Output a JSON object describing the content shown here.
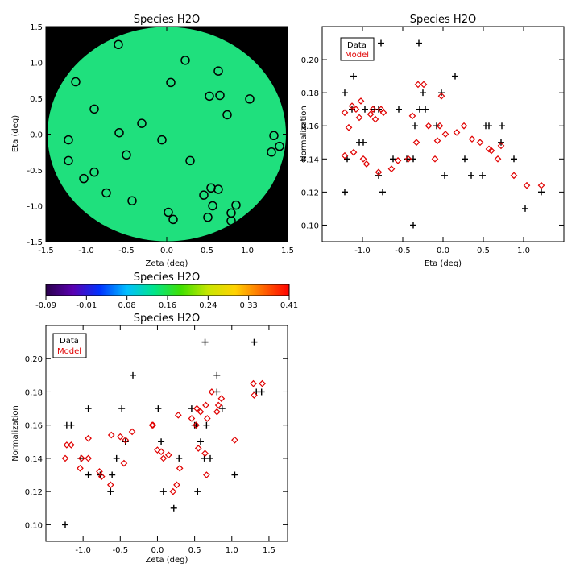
{
  "colors": {
    "background": "#ffffff",
    "map_background": "#000000",
    "map_fill": "#1fe07d",
    "data_marker": "#000000",
    "model_marker": "#e00000",
    "colorbar_stops": [
      "#2a004c",
      "#5a00b0",
      "#0033ff",
      "#00bfff",
      "#00e58a",
      "#3fe000",
      "#c8e600",
      "#ffd200",
      "#ff6a00",
      "#ff0000"
    ]
  },
  "chart_data": [
    {
      "type": "scatter",
      "title": "Species H2O",
      "xlabel": "Zeta (deg)",
      "ylabel": "Eta (deg)",
      "xlim": [
        -1.5,
        1.5
      ],
      "ylim": [
        -1.5,
        1.5
      ],
      "xticks": [
        "-1.5",
        "-1.0",
        "-0.5",
        "0.0",
        "0.5",
        "1.0",
        "1.5"
      ],
      "yticks": [
        "-1.5",
        "-1.0",
        "-0.5",
        "0.0",
        "0.5",
        "1.0",
        "1.5"
      ],
      "background": "color map of normalization, circular field",
      "marker": "open circle",
      "points": [
        {
          "zeta": -0.6,
          "eta": 1.25
        },
        {
          "zeta": 0.23,
          "eta": 1.03
        },
        {
          "zeta": 0.64,
          "eta": 0.88
        },
        {
          "zeta": -1.13,
          "eta": 0.73
        },
        {
          "zeta": 0.05,
          "eta": 0.72
        },
        {
          "zeta": 0.53,
          "eta": 0.53
        },
        {
          "zeta": 0.66,
          "eta": 0.54
        },
        {
          "zeta": 1.03,
          "eta": 0.49
        },
        {
          "zeta": -0.9,
          "eta": 0.35
        },
        {
          "zeta": 0.75,
          "eta": 0.27
        },
        {
          "zeta": -0.31,
          "eta": 0.15
        },
        {
          "zeta": -0.59,
          "eta": 0.02
        },
        {
          "zeta": 1.33,
          "eta": -0.02
        },
        {
          "zeta": -1.22,
          "eta": -0.08
        },
        {
          "zeta": -0.06,
          "eta": -0.08
        },
        {
          "zeta": 1.4,
          "eta": -0.17
        },
        {
          "zeta": 1.3,
          "eta": -0.25
        },
        {
          "zeta": -1.22,
          "eta": -0.37
        },
        {
          "zeta": -0.5,
          "eta": -0.29
        },
        {
          "zeta": 0.29,
          "eta": -0.37
        },
        {
          "zeta": -0.9,
          "eta": -0.53
        },
        {
          "zeta": -1.03,
          "eta": -0.62
        },
        {
          "zeta": 0.55,
          "eta": -0.75
        },
        {
          "zeta": 0.64,
          "eta": -0.77
        },
        {
          "zeta": -0.75,
          "eta": -0.82
        },
        {
          "zeta": 0.46,
          "eta": -0.85
        },
        {
          "zeta": -0.43,
          "eta": -0.93
        },
        {
          "zeta": 0.57,
          "eta": -1.0
        },
        {
          "zeta": 0.86,
          "eta": -0.99
        },
        {
          "zeta": 0.8,
          "eta": -1.1
        },
        {
          "zeta": 0.02,
          "eta": -1.09
        },
        {
          "zeta": 0.08,
          "eta": -1.19
        },
        {
          "zeta": 0.51,
          "eta": -1.16
        },
        {
          "zeta": 0.8,
          "eta": -1.21
        }
      ]
    },
    {
      "type": "scatter",
      "title": "Species H2O",
      "xlabel": "Eta (deg)",
      "ylabel": "Normalization",
      "xlim": [
        -1.5,
        1.5
      ],
      "ylim": [
        0.09,
        0.22
      ],
      "xticks": [
        -1.0,
        -0.5,
        0.0,
        0.5,
        1.0
      ],
      "xtick_labels": [
        "-1.0",
        "-0.5",
        "0.0",
        "0.5",
        "1.0"
      ],
      "yticks": [
        0.1,
        0.12,
        0.14,
        0.16,
        0.18,
        0.2
      ],
      "ytick_labels": [
        "0.10",
        "0.12",
        "0.14",
        "0.16",
        "0.18",
        "0.20"
      ],
      "legend": {
        "entries": [
          "Data",
          "Model"
        ],
        "position": "top-left"
      },
      "series": [
        {
          "name": "Data",
          "marker": "plus",
          "color": "#000000",
          "points": [
            [
              -1.22,
              0.18
            ],
            [
              -1.22,
              0.12
            ],
            [
              -1.19,
              0.14
            ],
            [
              -1.11,
              0.19
            ],
            [
              -1.13,
              0.17
            ],
            [
              -1.04,
              0.15
            ],
            [
              -0.99,
              0.15
            ],
            [
              -0.97,
              0.17
            ],
            [
              -0.85,
              0.17
            ],
            [
              -0.8,
              0.17
            ],
            [
              -0.8,
              0.13
            ],
            [
              -0.77,
              0.21
            ],
            [
              -0.75,
              0.12
            ],
            [
              -0.62,
              0.14
            ],
            [
              -0.55,
              0.17
            ],
            [
              -0.45,
              0.14
            ],
            [
              -0.37,
              0.14
            ],
            [
              -0.37,
              0.1
            ],
            [
              -0.35,
              0.16
            ],
            [
              -0.3,
              0.21
            ],
            [
              -0.29,
              0.17
            ],
            [
              -0.25,
              0.18
            ],
            [
              -0.22,
              0.17
            ],
            [
              -0.08,
              0.16
            ],
            [
              -0.02,
              0.18
            ],
            [
              0.02,
              0.13
            ],
            [
              0.15,
              0.19
            ],
            [
              0.27,
              0.14
            ],
            [
              0.35,
              0.13
            ],
            [
              0.49,
              0.13
            ],
            [
              0.53,
              0.16
            ],
            [
              0.57,
              0.16
            ],
            [
              0.73,
              0.16
            ],
            [
              0.72,
              0.15
            ],
            [
              0.88,
              0.14
            ],
            [
              1.02,
              0.11
            ],
            [
              1.22,
              0.12
            ]
          ]
        },
        {
          "name": "Model",
          "marker": "diamond",
          "color": "#e00000",
          "points": [
            [
              -1.22,
              0.168
            ],
            [
              -1.22,
              0.142
            ],
            [
              -1.17,
              0.159
            ],
            [
              -1.13,
              0.172
            ],
            [
              -1.11,
              0.144
            ],
            [
              -1.08,
              0.17
            ],
            [
              -1.04,
              0.165
            ],
            [
              -1.02,
              0.175
            ],
            [
              -0.99,
              0.14
            ],
            [
              -0.95,
              0.137
            ],
            [
              -0.9,
              0.167
            ],
            [
              -0.87,
              0.17
            ],
            [
              -0.84,
              0.164
            ],
            [
              -0.8,
              0.132
            ],
            [
              -0.77,
              0.17
            ],
            [
              -0.74,
              0.168
            ],
            [
              -0.64,
              0.134
            ],
            [
              -0.56,
              0.139
            ],
            [
              -0.43,
              0.14
            ],
            [
              -0.38,
              0.166
            ],
            [
              -0.33,
              0.15
            ],
            [
              -0.31,
              0.185
            ],
            [
              -0.24,
              0.185
            ],
            [
              -0.18,
              0.16
            ],
            [
              -0.1,
              0.14
            ],
            [
              -0.07,
              0.151
            ],
            [
              -0.04,
              0.16
            ],
            [
              -0.02,
              0.178
            ],
            [
              0.03,
              0.155
            ],
            [
              0.17,
              0.156
            ],
            [
              0.26,
              0.16
            ],
            [
              0.36,
              0.152
            ],
            [
              0.46,
              0.15
            ],
            [
              0.57,
              0.146
            ],
            [
              0.6,
              0.145
            ],
            [
              0.68,
              0.14
            ],
            [
              0.72,
              0.148
            ],
            [
              0.88,
              0.13
            ],
            [
              1.04,
              0.124
            ],
            [
              1.22,
              0.124
            ]
          ]
        }
      ]
    },
    {
      "type": "colorbar",
      "title": "Species H2O",
      "range": [
        -0.09,
        0.41
      ],
      "tick_labels": [
        "-0.09",
        "-0.01",
        "0.08",
        "0.16",
        "0.24",
        "0.33",
        "0.41"
      ]
    },
    {
      "type": "scatter",
      "title": "Species H2O",
      "xlabel": "Zeta (deg)",
      "ylabel": "Normalization",
      "xlim": [
        -1.5,
        1.75
      ],
      "ylim": [
        0.09,
        0.22
      ],
      "xticks": [
        -1.0,
        -0.5,
        0.0,
        0.5,
        1.0,
        1.5
      ],
      "xtick_labels": [
        "-1.0",
        "-0.5",
        "0.0",
        "0.5",
        "1.0",
        "1.5"
      ],
      "yticks": [
        0.1,
        0.12,
        0.14,
        0.16,
        0.18,
        0.2
      ],
      "ytick_labels": [
        "0.10",
        "0.12",
        "0.14",
        "0.16",
        "0.18",
        "0.20"
      ],
      "legend": {
        "entries": [
          "Data",
          "Model"
        ],
        "position": "top-left"
      },
      "series": [
        {
          "name": "Data",
          "marker": "plus",
          "color": "#000000",
          "points": [
            [
              -1.24,
              0.1
            ],
            [
              -1.22,
              0.16
            ],
            [
              -1.16,
              0.16
            ],
            [
              -1.03,
              0.14
            ],
            [
              -0.93,
              0.17
            ],
            [
              -0.93,
              0.13
            ],
            [
              -0.77,
              0.13
            ],
            [
              -0.63,
              0.12
            ],
            [
              -0.61,
              0.13
            ],
            [
              -0.55,
              0.14
            ],
            [
              -0.48,
              0.17
            ],
            [
              -0.43,
              0.15
            ],
            [
              -0.33,
              0.19
            ],
            [
              0.01,
              0.17
            ],
            [
              0.05,
              0.15
            ],
            [
              0.08,
              0.12
            ],
            [
              0.22,
              0.11
            ],
            [
              0.29,
              0.14
            ],
            [
              0.46,
              0.17
            ],
            [
              0.5,
              0.16
            ],
            [
              0.52,
              0.16
            ],
            [
              0.54,
              0.12
            ],
            [
              0.58,
              0.15
            ],
            [
              0.63,
              0.14
            ],
            [
              0.64,
              0.21
            ],
            [
              0.66,
              0.16
            ],
            [
              0.71,
              0.14
            ],
            [
              0.8,
              0.19
            ],
            [
              0.8,
              0.18
            ],
            [
              0.87,
              0.17
            ],
            [
              1.04,
              0.13
            ],
            [
              1.3,
              0.21
            ],
            [
              1.33,
              0.18
            ],
            [
              1.4,
              0.18
            ]
          ]
        },
        {
          "name": "Model",
          "marker": "diamond",
          "color": "#e00000",
          "points": [
            [
              -1.24,
              0.14
            ],
            [
              -1.22,
              0.148
            ],
            [
              -1.16,
              0.148
            ],
            [
              -1.04,
              0.134
            ],
            [
              -1.02,
              0.14
            ],
            [
              -0.93,
              0.152
            ],
            [
              -0.93,
              0.14
            ],
            [
              -0.78,
              0.132
            ],
            [
              -0.75,
              0.129
            ],
            [
              -0.63,
              0.124
            ],
            [
              -0.62,
              0.154
            ],
            [
              -0.5,
              0.153
            ],
            [
              -0.45,
              0.137
            ],
            [
              -0.43,
              0.151
            ],
            [
              -0.34,
              0.156
            ],
            [
              -0.07,
              0.16
            ],
            [
              -0.06,
              0.16
            ],
            [
              0.0,
              0.145
            ],
            [
              0.05,
              0.144
            ],
            [
              0.08,
              0.14
            ],
            [
              0.15,
              0.142
            ],
            [
              0.21,
              0.12
            ],
            [
              0.26,
              0.124
            ],
            [
              0.28,
              0.166
            ],
            [
              0.3,
              0.134
            ],
            [
              0.46,
              0.164
            ],
            [
              0.52,
              0.16
            ],
            [
              0.53,
              0.17
            ],
            [
              0.55,
              0.146
            ],
            [
              0.58,
              0.168
            ],
            [
              0.64,
              0.143
            ],
            [
              0.65,
              0.172
            ],
            [
              0.66,
              0.13
            ],
            [
              0.67,
              0.164
            ],
            [
              0.73,
              0.18
            ],
            [
              0.8,
              0.168
            ],
            [
              0.82,
              0.172
            ],
            [
              0.86,
              0.176
            ],
            [
              1.04,
              0.151
            ],
            [
              1.29,
              0.185
            ],
            [
              1.3,
              0.178
            ],
            [
              1.41,
              0.185
            ]
          ]
        }
      ]
    }
  ]
}
